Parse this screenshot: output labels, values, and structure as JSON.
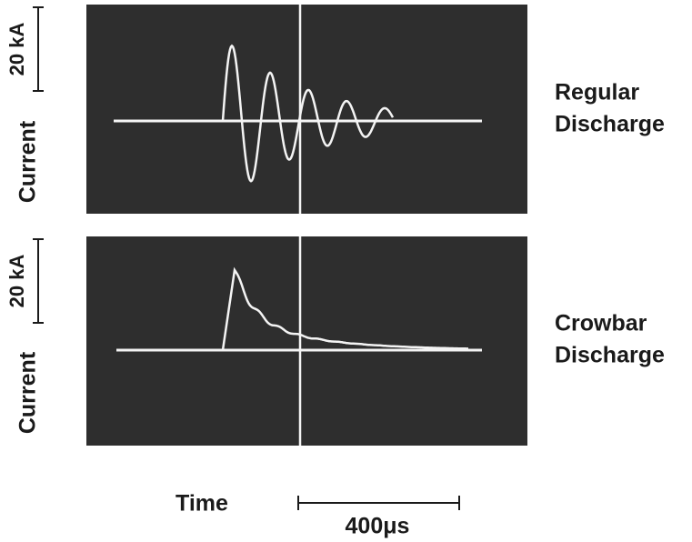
{
  "panels": [
    {
      "scale_label": "20 kA",
      "axis_label": "Current",
      "name_lines": [
        "Regular",
        "Discharge"
      ]
    },
    {
      "scale_label": "20 kA",
      "axis_label": "Current",
      "name_lines": [
        "Crowbar",
        "Discharge"
      ]
    }
  ],
  "footer": {
    "time_label": "Time",
    "scale_label": "400μs"
  }
}
